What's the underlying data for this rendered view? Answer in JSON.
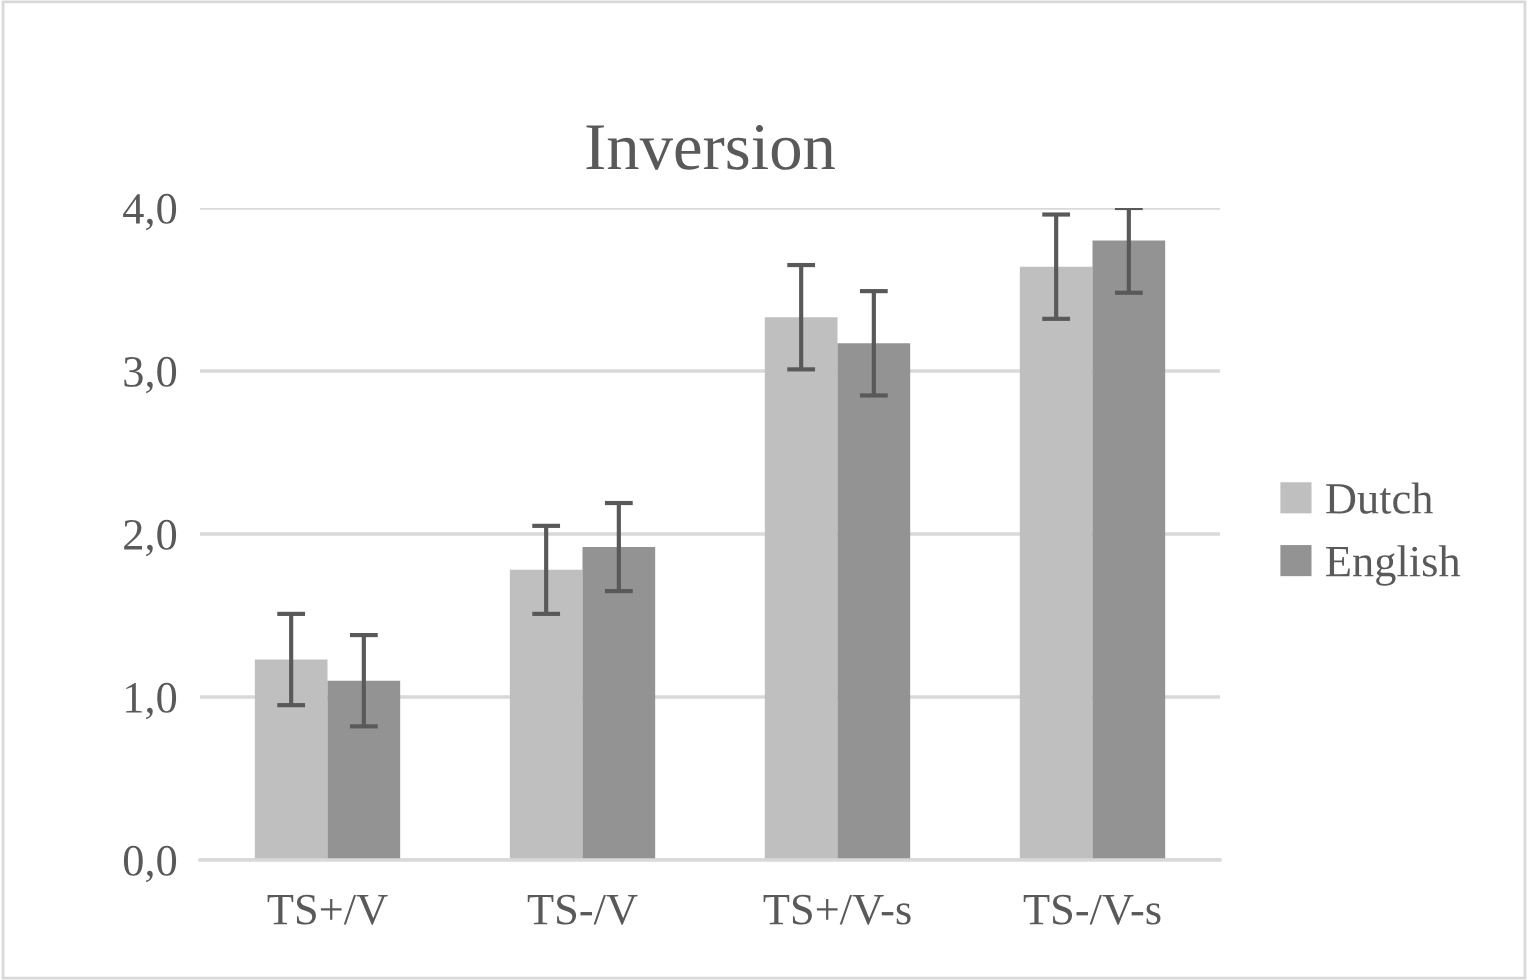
{
  "chart_data": {
    "type": "bar",
    "title": "Inversion",
    "categories": [
      "TS+/V",
      "TS-/V",
      "TS+/V-s",
      "TS-/V-s"
    ],
    "series": [
      {
        "name": "Dutch",
        "color": "#bfbfbf",
        "values": [
          1.23,
          1.78,
          3.33,
          3.64
        ],
        "errors": [
          0.28,
          0.27,
          0.32,
          0.32
        ]
      },
      {
        "name": "English",
        "color": "#939393",
        "values": [
          1.1,
          1.92,
          3.17,
          3.8
        ],
        "errors": [
          0.28,
          0.27,
          0.32,
          [
            3.48,
            4.0
          ]
        ]
      }
    ],
    "ylim": [
      0,
      4.0
    ],
    "yticks": [
      {
        "value": 0,
        "label": "0,0"
      },
      {
        "value": 1.0,
        "label": "1,0"
      },
      {
        "value": 2.0,
        "label": "2,0"
      },
      {
        "value": 3.0,
        "label": "3,0"
      },
      {
        "value": 4.0,
        "label": "4,0"
      }
    ],
    "grid": "y",
    "legend": "right"
  }
}
